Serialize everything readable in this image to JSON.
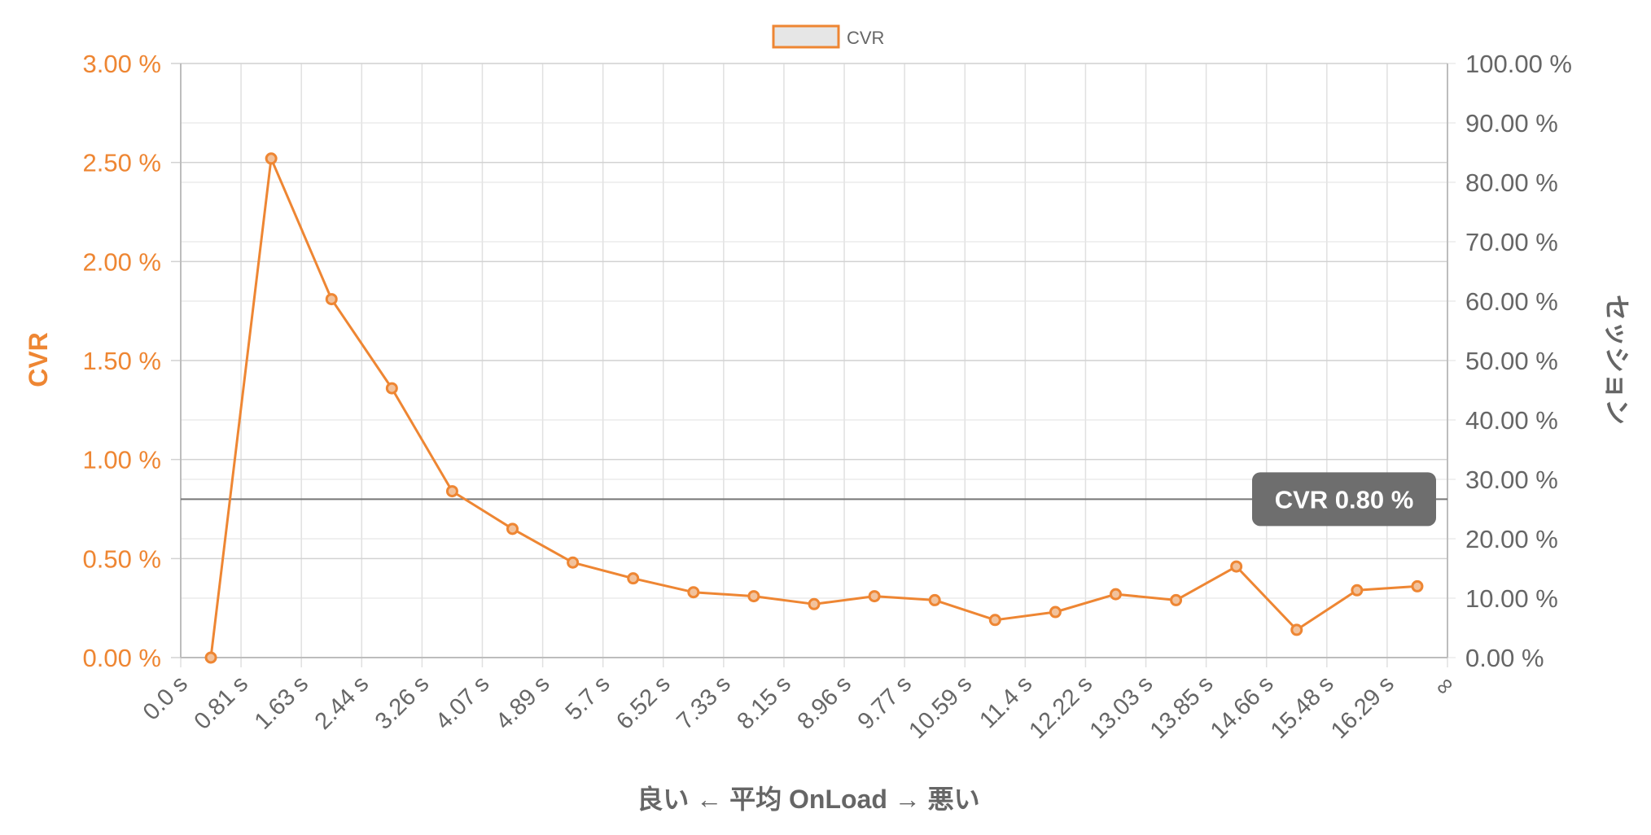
{
  "chart_data": {
    "type": "line",
    "legend": {
      "position": "top-center",
      "label": "CVR"
    },
    "series": [
      {
        "name": "CVR",
        "color": "#ee8633",
        "values": [
          0.0,
          2.52,
          1.81,
          1.36,
          0.84,
          0.65,
          0.48,
          0.4,
          0.33,
          0.31,
          0.27,
          0.31,
          0.29,
          0.19,
          0.23,
          0.32,
          0.29,
          0.46,
          0.14,
          0.34,
          0.36
        ]
      }
    ],
    "x_ticks": [
      "0.0 s",
      "0.81 s",
      "1.63 s",
      "2.44 s",
      "3.26 s",
      "4.07 s",
      "4.89 s",
      "5.7 s",
      "6.52 s",
      "7.33 s",
      "8.15 s",
      "8.96 s",
      "9.77 s",
      "10.59 s",
      "11.4 s",
      "12.22 s",
      "13.03 s",
      "13.85 s",
      "14.66 s",
      "15.48 s",
      "16.29 s",
      "∞"
    ],
    "xlabel": "良い ← 平均 OnLoad → 悪い",
    "y_left": {
      "label": "CVR",
      "color": "#ee8633",
      "range": [
        0,
        3
      ],
      "ticks": [
        "0.00 %",
        "0.50 %",
        "1.00 %",
        "1.50 %",
        "2.00 %",
        "2.50 %",
        "3.00 %"
      ]
    },
    "y_right": {
      "label": "セッション",
      "range": [
        0,
        100
      ],
      "ticks": [
        "0.00 %",
        "10.00 %",
        "20.00 %",
        "30.00 %",
        "40.00 %",
        "50.00 %",
        "60.00 %",
        "70.00 %",
        "80.00 %",
        "90.00 %",
        "100.00 %"
      ]
    },
    "annotation": {
      "label": "CVR 0.80 %",
      "value": 0.8
    },
    "grid": true
  }
}
